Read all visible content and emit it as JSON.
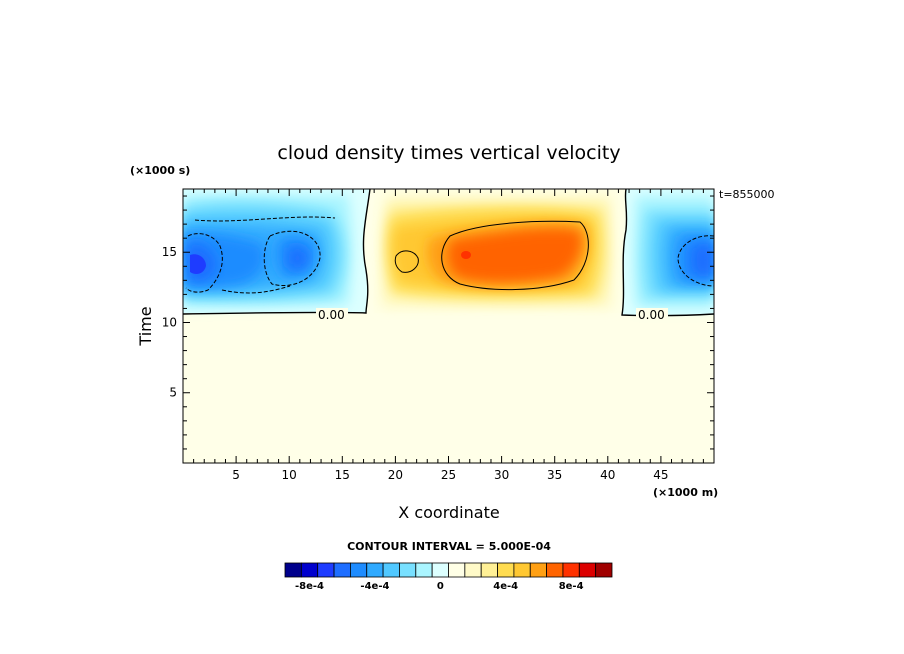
{
  "chart_data": {
    "type": "heatmap",
    "title": "cloud density times vertical velocity",
    "xlabel": "X coordinate",
    "ylabel": "Time",
    "x_units": "(×1000 m)",
    "y_units": "(×1000 s)",
    "annotation": "t=855000",
    "xlim": [
      0,
      50
    ],
    "ylim": [
      0,
      19.5
    ],
    "x_ticks": [
      5,
      10,
      15,
      20,
      25,
      30,
      35,
      40,
      45
    ],
    "y_ticks": [
      5,
      10,
      15
    ],
    "contour_interval_label": "CONTOUR INTERVAL = 5.000E-04",
    "contour_line_labels": [
      "0.00",
      "0.00"
    ],
    "colorbar": {
      "levels": [
        -0.0009,
        -0.0008,
        -0.0007,
        -0.0006,
        -0.0005,
        -0.0004,
        -0.0003,
        -0.0002,
        -0.0001,
        0,
        0.0001,
        0.0002,
        0.0003,
        0.0004,
        0.0005,
        0.0006,
        0.0007,
        0.0008,
        0.0009,
        0.001
      ],
      "colors": [
        "#00008c",
        "#0000cd",
        "#1e3cff",
        "#1e6eff",
        "#1e8cff",
        "#30aaff",
        "#50c8ff",
        "#78e0ff",
        "#aaf5ff",
        "#dcffff",
        "#ffffe6",
        "#fffac8",
        "#fff096",
        "#ffdc50",
        "#ffc832",
        "#ffa014",
        "#ff6400",
        "#ff3200",
        "#dc0000",
        "#a00000"
      ],
      "tick_labels": [
        "-8e-4",
        "-4e-4",
        "0",
        "4e-4",
        "8e-4"
      ],
      "tick_values": [
        -0.0008,
        -0.0004,
        0,
        0.0004,
        0.0008
      ]
    },
    "regions": [
      {
        "name": "negative-left",
        "x_range": [
          0,
          17
        ],
        "y_range": [
          11,
          19.5
        ],
        "min_value": -0.0007
      },
      {
        "name": "positive-center",
        "x_range": [
          17.5,
          41
        ],
        "y_range": [
          11,
          19.5
        ],
        "max_value": 0.0008
      },
      {
        "name": "negative-right",
        "x_range": [
          41.5,
          50
        ],
        "y_range": [
          11,
          19.5
        ],
        "min_value": -0.0007
      },
      {
        "name": "zero-background",
        "x_range": [
          0,
          50
        ],
        "y_range": [
          0,
          11
        ],
        "value": 0
      }
    ]
  }
}
